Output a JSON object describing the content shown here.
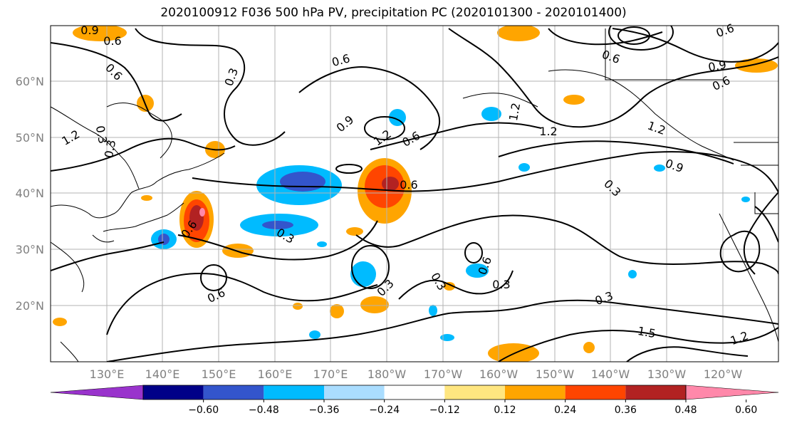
{
  "title": "2020100912 F036 500 hPa PV, precipitation PC (2020101300 - 2020101400)",
  "latitude_labels": [
    "60°N",
    "50°N",
    "40°N",
    "30°N",
    "20°N"
  ],
  "longitude_labels": [
    "130°E",
    "140°E",
    "150°E",
    "160°E",
    "170°E",
    "180°W",
    "170°W",
    "160°W",
    "150°W",
    "140°W",
    "130°W",
    "120°W"
  ],
  "colorbar": {
    "ticks": [
      "−0.60",
      "−0.48",
      "−0.36",
      "−0.24",
      "−0.12",
      "0.12",
      "0.24",
      "0.36",
      "0.48",
      "0.60"
    ],
    "colors": [
      "#9933cc",
      "#000088",
      "#3355cc",
      "#00bbff",
      "#aaddff",
      "#ffffff",
      "#ffe680",
      "#ffa500",
      "#ff4500",
      "#b22222",
      "#ff88aa"
    ]
  },
  "contour_labels": [
    "0.9",
    "0.6",
    "0.6",
    "0.3",
    "0.6",
    "0.9",
    "1.2",
    "0.6",
    "1.2",
    "0.6",
    "0.6",
    "1.2",
    "1.2",
    "0.9",
    "0.6",
    "0.9",
    "1.2",
    "0.3",
    "0.3",
    "0.6",
    "0.6",
    "0.3",
    "0.3",
    "0.6",
    "0.6",
    "0.3",
    "0.3",
    "0.3",
    "0.3",
    "1.5",
    "1.2"
  ]
}
